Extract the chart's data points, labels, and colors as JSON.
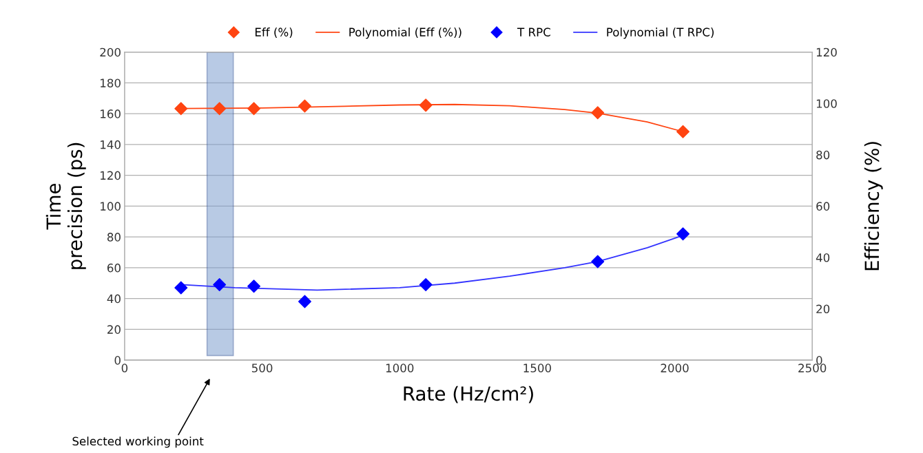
{
  "chart_data": {
    "type": "scatter",
    "xlabel": "Rate (Hz/cm²)",
    "ylabel": "Time\nprecision (ps)",
    "y2label": "Efficiency (%)",
    "xlim": [
      0,
      2500
    ],
    "xticks": [
      0,
      500,
      1000,
      1500,
      2000,
      2500
    ],
    "ylim": [
      0,
      200
    ],
    "yticks": [
      0,
      20,
      40,
      60,
      80,
      100,
      120,
      140,
      160,
      180,
      200
    ],
    "y2lim": [
      0,
      120
    ],
    "y2ticks": [
      0,
      20,
      40,
      60,
      80,
      100,
      120
    ],
    "grid": "y",
    "legend": "top",
    "series": [
      {
        "name": "Eff (%)",
        "marker": "diamond",
        "axis": "y2",
        "color": "#ff4411",
        "x": [
          205,
          345,
          470,
          655,
          1095,
          1720,
          2030
        ],
        "values": [
          98,
          98,
          98,
          99,
          99.3,
          96.4,
          89
        ]
      },
      {
        "name": "Polynomial (Eff (%))",
        "type": "line",
        "marker": "none",
        "axis": "y2",
        "color": "#ff4411",
        "x": [
          205,
          500,
          800,
          1000,
          1200,
          1400,
          1600,
          1720,
          1900,
          2030
        ],
        "values": [
          98,
          98.2,
          98.9,
          99.4,
          99.6,
          99.1,
          97.6,
          96.2,
          92.8,
          89
        ]
      },
      {
        "name": "T RPC",
        "marker": "diamond",
        "axis": "y",
        "color": "#0000ff",
        "x": [
          205,
          345,
          470,
          655,
          1095,
          1720,
          2030
        ],
        "values": [
          47,
          49,
          48,
          38,
          49,
          64,
          82
        ]
      },
      {
        "name": "Polynomial (T RPC)",
        "type": "line",
        "marker": "none",
        "axis": "y",
        "color": "#3333ff",
        "x": [
          205,
          400,
          700,
          1000,
          1200,
          1400,
          1600,
          1720,
          1900,
          2030
        ],
        "values": [
          49,
          47,
          45.5,
          47,
          50,
          54.5,
          60,
          64,
          73,
          81
        ]
      }
    ],
    "bands": [
      {
        "axis": "x",
        "from": 300,
        "to": 395,
        "color": "#7f9fcf"
      }
    ],
    "annotations": [
      "Selected working point"
    ]
  }
}
